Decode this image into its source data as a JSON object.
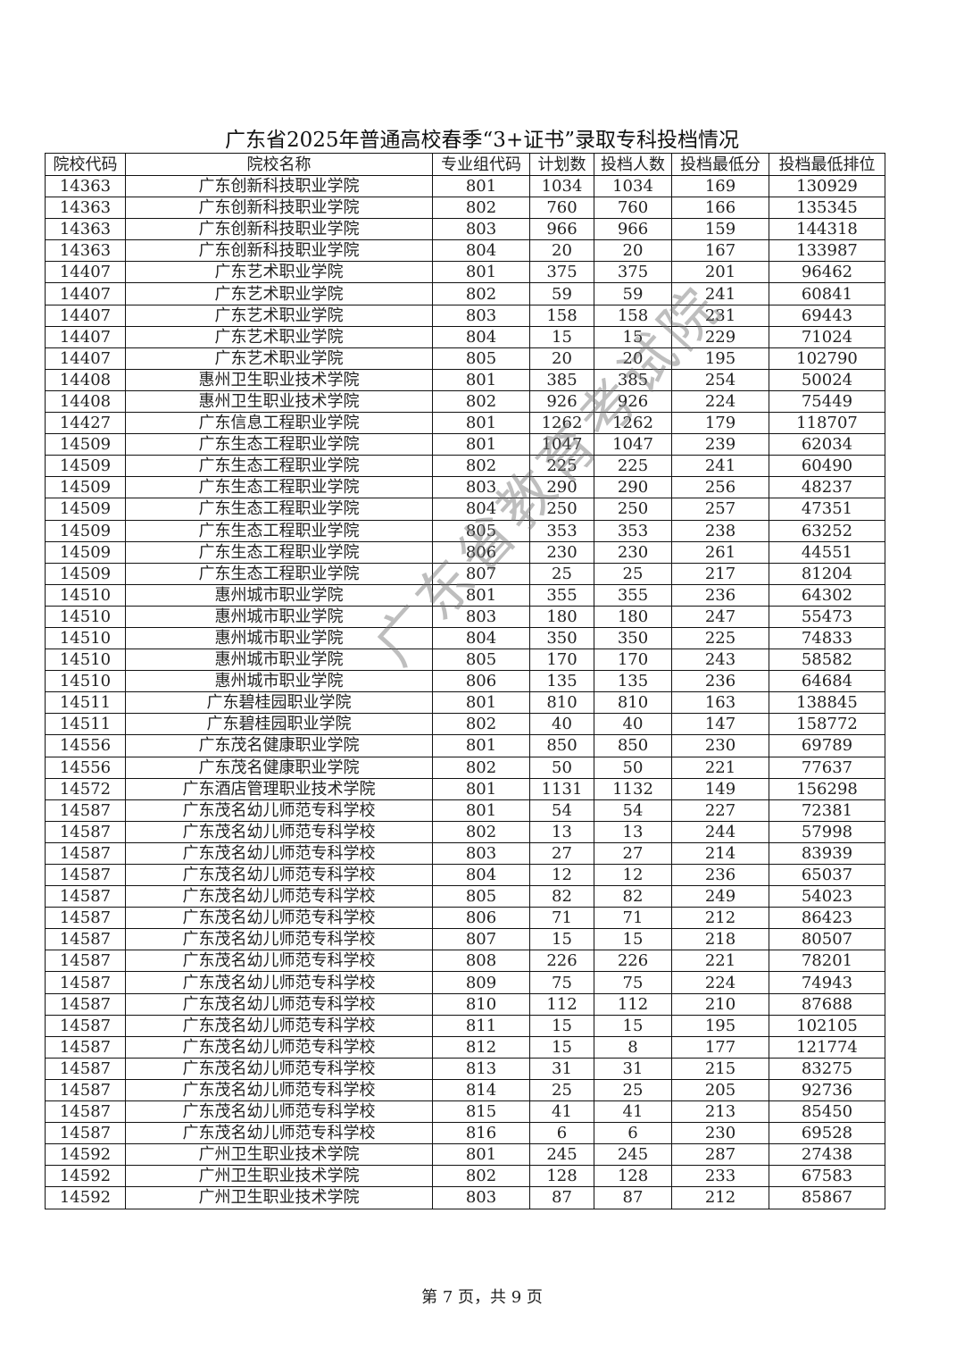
{
  "title": "广东省2025年普通高校春季“3+证书”录取专科投档情况",
  "columns": [
    "院校代码",
    "院校名称",
    "专业组代码",
    "计划数",
    "投档人数",
    "投档最低分",
    "投档最低排位"
  ],
  "rows": [
    [
      "14363",
      "广东创新科技职业学院",
      "801",
      "1034",
      "1034",
      "169",
      "130929"
    ],
    [
      "14363",
      "广东创新科技职业学院",
      "802",
      "760",
      "760",
      "166",
      "135345"
    ],
    [
      "14363",
      "广东创新科技职业学院",
      "803",
      "966",
      "966",
      "159",
      "144318"
    ],
    [
      "14363",
      "广东创新科技职业学院",
      "804",
      "20",
      "20",
      "167",
      "133987"
    ],
    [
      "14407",
      "广东艺术职业学院",
      "801",
      "375",
      "375",
      "201",
      "96462"
    ],
    [
      "14407",
      "广东艺术职业学院",
      "802",
      "59",
      "59",
      "241",
      "60841"
    ],
    [
      "14407",
      "广东艺术职业学院",
      "803",
      "158",
      "158",
      "231",
      "69443"
    ],
    [
      "14407",
      "广东艺术职业学院",
      "804",
      "15",
      "15",
      "229",
      "71024"
    ],
    [
      "14407",
      "广东艺术职业学院",
      "805",
      "20",
      "20",
      "195",
      "102790"
    ],
    [
      "14408",
      "惠州卫生职业技术学院",
      "801",
      "385",
      "385",
      "254",
      "50024"
    ],
    [
      "14408",
      "惠州卫生职业技术学院",
      "802",
      "926",
      "926",
      "224",
      "75449"
    ],
    [
      "14427",
      "广东信息工程职业学院",
      "801",
      "1262",
      "1262",
      "179",
      "118707"
    ],
    [
      "14509",
      "广东生态工程职业学院",
      "801",
      "1047",
      "1047",
      "239",
      "62034"
    ],
    [
      "14509",
      "广东生态工程职业学院",
      "802",
      "225",
      "225",
      "241",
      "60490"
    ],
    [
      "14509",
      "广东生态工程职业学院",
      "803",
      "290",
      "290",
      "256",
      "48237"
    ],
    [
      "14509",
      "广东生态工程职业学院",
      "804",
      "250",
      "250",
      "257",
      "47351"
    ],
    [
      "14509",
      "广东生态工程职业学院",
      "805",
      "353",
      "353",
      "238",
      "63252"
    ],
    [
      "14509",
      "广东生态工程职业学院",
      "806",
      "230",
      "230",
      "261",
      "44551"
    ],
    [
      "14509",
      "广东生态工程职业学院",
      "807",
      "25",
      "25",
      "217",
      "81204"
    ],
    [
      "14510",
      "惠州城市职业学院",
      "801",
      "355",
      "355",
      "236",
      "64302"
    ],
    [
      "14510",
      "惠州城市职业学院",
      "803",
      "180",
      "180",
      "247",
      "55473"
    ],
    [
      "14510",
      "惠州城市职业学院",
      "804",
      "350",
      "350",
      "225",
      "74833"
    ],
    [
      "14510",
      "惠州城市职业学院",
      "805",
      "170",
      "170",
      "243",
      "58582"
    ],
    [
      "14510",
      "惠州城市职业学院",
      "806",
      "135",
      "135",
      "236",
      "64684"
    ],
    [
      "14511",
      "广东碧桂园职业学院",
      "801",
      "810",
      "810",
      "163",
      "138845"
    ],
    [
      "14511",
      "广东碧桂园职业学院",
      "802",
      "40",
      "40",
      "147",
      "158772"
    ],
    [
      "14556",
      "广东茂名健康职业学院",
      "801",
      "850",
      "850",
      "230",
      "69789"
    ],
    [
      "14556",
      "广东茂名健康职业学院",
      "802",
      "50",
      "50",
      "221",
      "77637"
    ],
    [
      "14572",
      "广东酒店管理职业技术学院",
      "801",
      "1131",
      "1132",
      "149",
      "156298"
    ],
    [
      "14587",
      "广东茂名幼儿师范专科学校",
      "801",
      "54",
      "54",
      "227",
      "72381"
    ],
    [
      "14587",
      "广东茂名幼儿师范专科学校",
      "802",
      "13",
      "13",
      "244",
      "57998"
    ],
    [
      "14587",
      "广东茂名幼儿师范专科学校",
      "803",
      "27",
      "27",
      "214",
      "83939"
    ],
    [
      "14587",
      "广东茂名幼儿师范专科学校",
      "804",
      "12",
      "12",
      "236",
      "65037"
    ],
    [
      "14587",
      "广东茂名幼儿师范专科学校",
      "805",
      "82",
      "82",
      "249",
      "54023"
    ],
    [
      "14587",
      "广东茂名幼儿师范专科学校",
      "806",
      "71",
      "71",
      "212",
      "86423"
    ],
    [
      "14587",
      "广东茂名幼儿师范专科学校",
      "807",
      "15",
      "15",
      "218",
      "80507"
    ],
    [
      "14587",
      "广东茂名幼儿师范专科学校",
      "808",
      "226",
      "226",
      "221",
      "78201"
    ],
    [
      "14587",
      "广东茂名幼儿师范专科学校",
      "809",
      "75",
      "75",
      "224",
      "74943"
    ],
    [
      "14587",
      "广东茂名幼儿师范专科学校",
      "810",
      "112",
      "112",
      "210",
      "87688"
    ],
    [
      "14587",
      "广东茂名幼儿师范专科学校",
      "811",
      "15",
      "15",
      "195",
      "102105"
    ],
    [
      "14587",
      "广东茂名幼儿师范专科学校",
      "812",
      "15",
      "8",
      "177",
      "121774"
    ],
    [
      "14587",
      "广东茂名幼儿师范专科学校",
      "813",
      "31",
      "31",
      "215",
      "83275"
    ],
    [
      "14587",
      "广东茂名幼儿师范专科学校",
      "814",
      "25",
      "25",
      "205",
      "92736"
    ],
    [
      "14587",
      "广东茂名幼儿师范专科学校",
      "815",
      "41",
      "41",
      "213",
      "85450"
    ],
    [
      "14587",
      "广东茂名幼儿师范专科学校",
      "816",
      "6",
      "6",
      "230",
      "69528"
    ],
    [
      "14592",
      "广州卫生职业技术学院",
      "801",
      "245",
      "245",
      "287",
      "27438"
    ],
    [
      "14592",
      "广州卫生职业技术学院",
      "802",
      "128",
      "128",
      "233",
      "67583"
    ],
    [
      "14592",
      "广州卫生职业技术学院",
      "803",
      "87",
      "87",
      "212",
      "85867"
    ]
  ],
  "footer": "第 7 页，共 9 页",
  "watermark": "广东省教育考试院"
}
